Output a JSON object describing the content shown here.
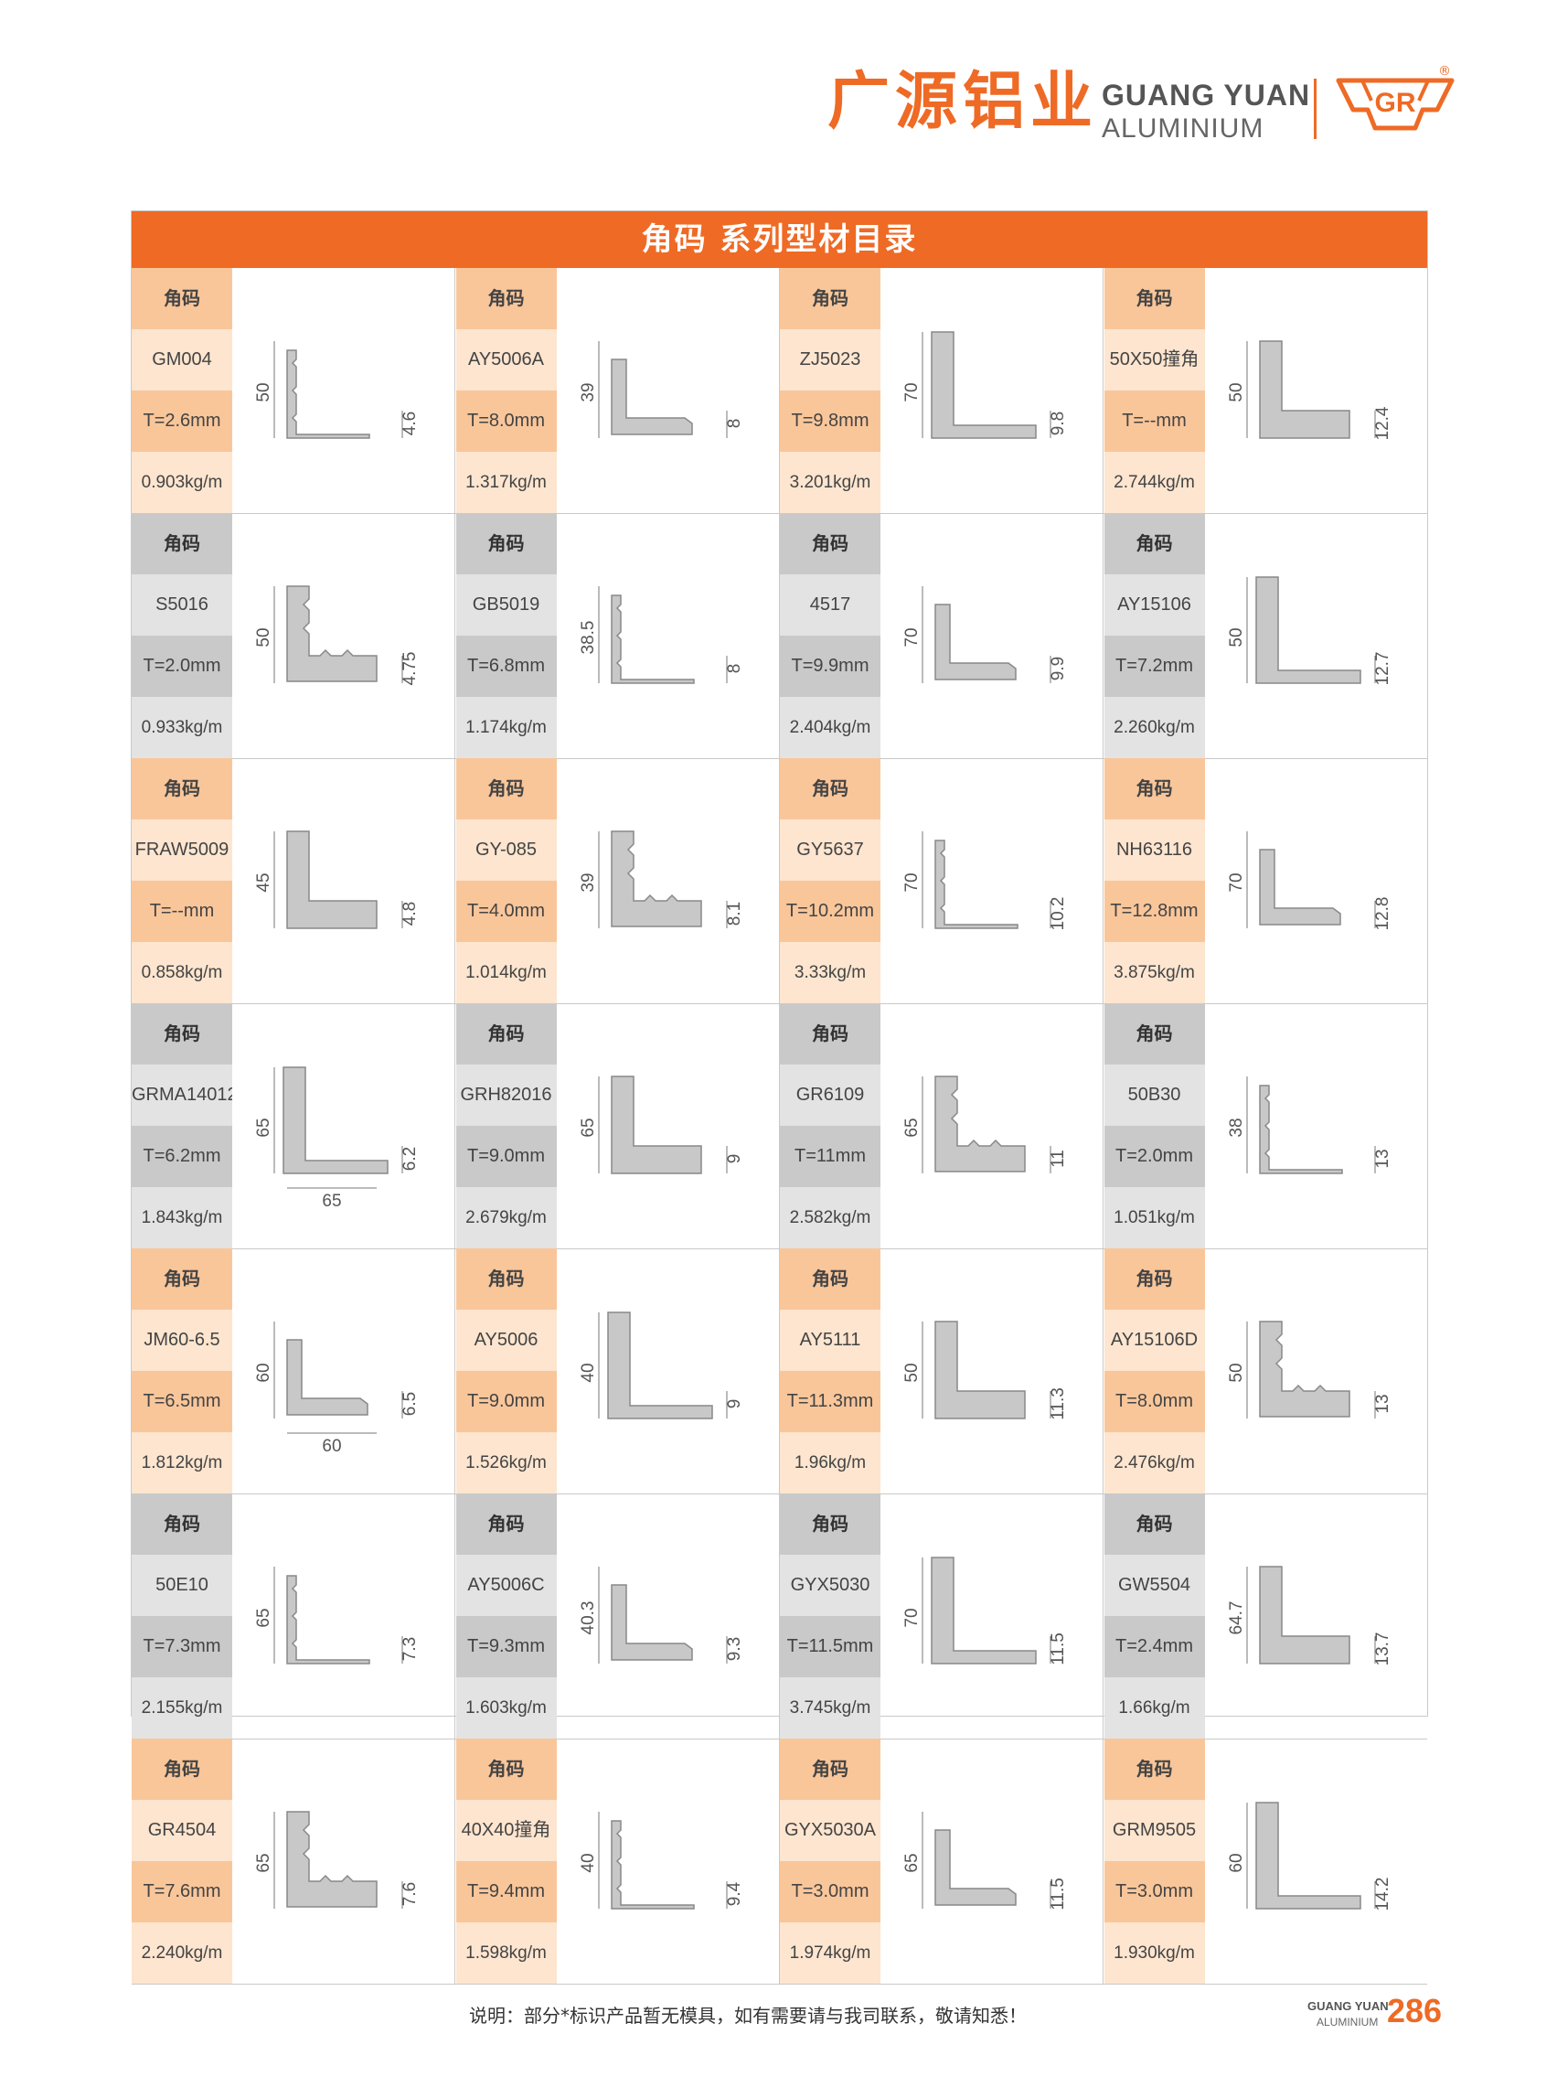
{
  "header": {
    "brand_cn": "广源铝业",
    "brand_en_line1": "GUANG YUAN",
    "brand_en_line2": "ALUMINIUM",
    "logo_text": "GR",
    "registered_mark": "®"
  },
  "catalog": {
    "title": "角码 系列型材目录",
    "products": [
      {
        "category": "角码",
        "model": "GM004",
        "thickness": "T=2.6mm",
        "weight": "0.903kg/m",
        "dims": {
          "left": "50",
          "right": "4.6"
        }
      },
      {
        "category": "角码",
        "model": "AY5006A",
        "thickness": "T=8.0mm",
        "weight": "1.317kg/m",
        "dims": {
          "left": "39",
          "right": "8"
        }
      },
      {
        "category": "角码",
        "model": "ZJ5023",
        "thickness": "T=9.8mm",
        "weight": "3.201kg/m",
        "dims": {
          "left": "70",
          "right": "9.8"
        }
      },
      {
        "category": "角码",
        "model": "50X50撞角",
        "thickness": "T=--mm",
        "weight": "2.744kg/m",
        "dims": {
          "left": "50",
          "right": "12.4"
        }
      },
      {
        "category": "角码",
        "model": "S5016",
        "thickness": "T=2.0mm",
        "weight": "0.933kg/m",
        "dims": {
          "left": "50",
          "right": "4.75"
        }
      },
      {
        "category": "角码",
        "model": "GB5019",
        "thickness": "T=6.8mm",
        "weight": "1.174kg/m",
        "dims": {
          "left": "38.5",
          "right": "8"
        }
      },
      {
        "category": "角码",
        "model": "4517",
        "thickness": "T=9.9mm",
        "weight": "2.404kg/m",
        "dims": {
          "left": "70",
          "right": "9.9"
        }
      },
      {
        "category": "角码",
        "model": "AY15106",
        "thickness": "T=7.2mm",
        "weight": "2.260kg/m",
        "dims": {
          "left": "50",
          "right": "12.7"
        }
      },
      {
        "category": "角码",
        "model": "FRAW5009",
        "thickness": "T=--mm",
        "weight": "0.858kg/m",
        "dims": {
          "left": "45",
          "right": "4.8"
        }
      },
      {
        "category": "角码",
        "model": "GY-085",
        "thickness": "T=4.0mm",
        "weight": "1.014kg/m",
        "dims": {
          "left": "39",
          "right": "8.1"
        }
      },
      {
        "category": "角码",
        "model": "GY5637",
        "thickness": "T=10.2mm",
        "weight": "3.33kg/m",
        "dims": {
          "left": "70",
          "right": "10.2"
        }
      },
      {
        "category": "角码",
        "model": "NH63116",
        "thickness": "T=12.8mm",
        "weight": "3.875kg/m",
        "dims": {
          "left": "70",
          "right": "12.8"
        }
      },
      {
        "category": "角码",
        "model": "GRMA14012",
        "thickness": "T=6.2mm",
        "weight": "1.843kg/m",
        "dims": {
          "left": "65",
          "right": "6.2",
          "bottom": "65"
        }
      },
      {
        "category": "角码",
        "model": "GRH82016",
        "thickness": "T=9.0mm",
        "weight": "2.679kg/m",
        "dims": {
          "left": "65",
          "right": "9"
        }
      },
      {
        "category": "角码",
        "model": "GR6109",
        "thickness": "T=11mm",
        "weight": "2.582kg/m",
        "dims": {
          "left": "65",
          "right": "11"
        }
      },
      {
        "category": "角码",
        "model": "50B30",
        "thickness": "T=2.0mm",
        "weight": "1.051kg/m",
        "dims": {
          "left": "38",
          "right": "13"
        }
      },
      {
        "category": "角码",
        "model": "JM60-6.5",
        "thickness": "T=6.5mm",
        "weight": "1.812kg/m",
        "dims": {
          "left": "60",
          "right": "6.5",
          "bottom": "60"
        }
      },
      {
        "category": "角码",
        "model": "AY5006",
        "thickness": "T=9.0mm",
        "weight": "1.526kg/m",
        "dims": {
          "left": "40",
          "right": "9"
        }
      },
      {
        "category": "角码",
        "model": "AY5111",
        "thickness": "T=11.3mm",
        "weight": "1.96kg/m",
        "dims": {
          "left": "50",
          "right": "11.3"
        }
      },
      {
        "category": "角码",
        "model": "AY15106D",
        "thickness": "T=8.0mm",
        "weight": "2.476kg/m",
        "dims": {
          "left": "50",
          "right": "13"
        }
      },
      {
        "category": "角码",
        "model": "50E10",
        "thickness": "T=7.3mm",
        "weight": "2.155kg/m",
        "dims": {
          "left": "65",
          "right": "7.3"
        }
      },
      {
        "category": "角码",
        "model": "AY5006C",
        "thickness": "T=9.3mm",
        "weight": "1.603kg/m",
        "dims": {
          "left": "40.3",
          "right": "9.3"
        }
      },
      {
        "category": "角码",
        "model": "GYX5030",
        "thickness": "T=11.5mm",
        "weight": "3.745kg/m",
        "dims": {
          "left": "70",
          "right": "11.5"
        }
      },
      {
        "category": "角码",
        "model": "GW5504",
        "thickness": "T=2.4mm",
        "weight": "1.66kg/m",
        "dims": {
          "left": "64.7",
          "right": "13.7"
        }
      },
      {
        "category": "角码",
        "model": "GR4504",
        "thickness": "T=7.6mm",
        "weight": "2.240kg/m",
        "dims": {
          "left": "65",
          "right": "7.6"
        }
      },
      {
        "category": "角码",
        "model": "40X40撞角",
        "thickness": "T=9.4mm",
        "weight": "1.598kg/m",
        "dims": {
          "left": "40",
          "right": "9.4"
        }
      },
      {
        "category": "角码",
        "model": "GYX5030A",
        "thickness": "T=3.0mm",
        "weight": "1.974kg/m",
        "dims": {
          "left": "65",
          "right": "11.5"
        }
      },
      {
        "category": "角码",
        "model": "GRM9505",
        "thickness": "T=3.0mm",
        "weight": "1.930kg/m",
        "dims": {
          "left": "60",
          "right": "14.2"
        }
      }
    ]
  },
  "footer": {
    "note": "说明：部分*标识产品暂无模具，如有需要请与我司联系，敬请知悉！",
    "brand_line1": "GUANG YUAN",
    "brand_line2": "ALUMINIUM",
    "page_number": "286"
  },
  "colors": {
    "brand_orange": "#ee6a25",
    "light_orange": "#f9c69a",
    "pale_orange": "#fde5cf",
    "gray": "#c9c9c9",
    "light_gray": "#e3e3e3",
    "profile_fill": "#c8c8c8"
  }
}
